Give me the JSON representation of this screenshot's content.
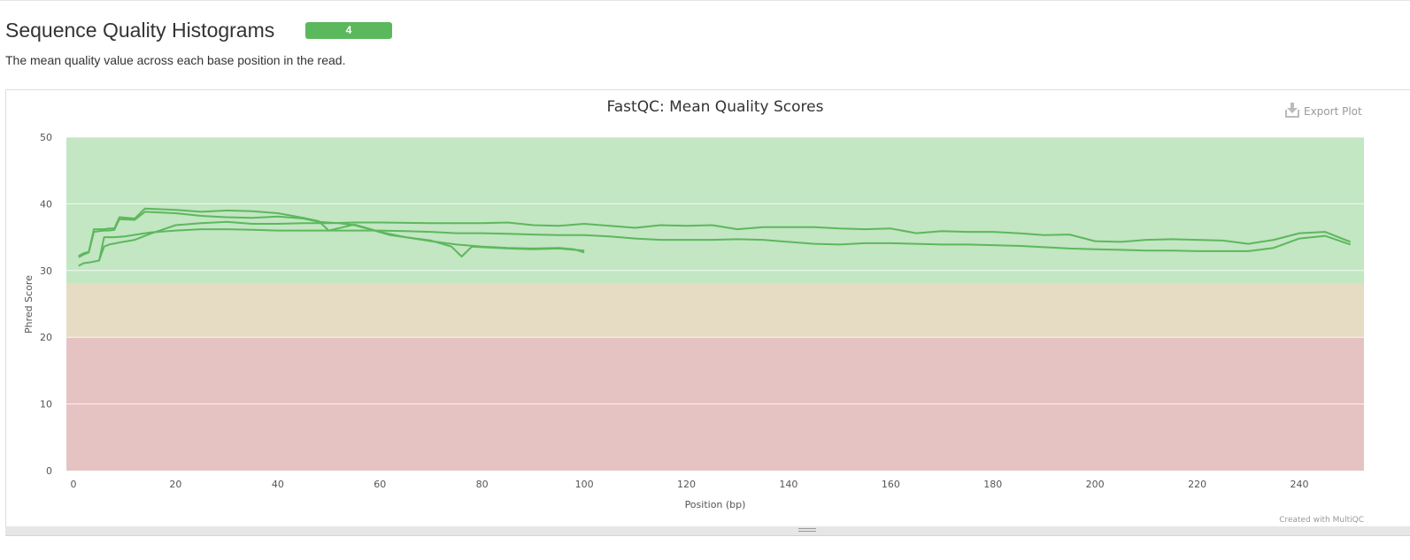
{
  "section": {
    "title": "Sequence Quality Histograms",
    "badge_count": "4",
    "description": "The mean quality value across each base position in the read."
  },
  "toolbar": {
    "export_label": "Export Plot",
    "export_icon": "download-icon"
  },
  "credit": "Created with MultiQC",
  "colors": {
    "line": "#5cb85c",
    "band_good": "#c3e6c3",
    "band_warn": "#e6dcc3",
    "band_fail": "#e6c3c3"
  },
  "chart_data": {
    "type": "line",
    "title": "FastQC: Mean Quality Scores",
    "xlabel": "Position (bp)",
    "ylabel": "Phred Score",
    "xlim": [
      0,
      252
    ],
    "ylim": [
      0,
      50
    ],
    "x_ticks": [
      0,
      20,
      40,
      60,
      80,
      100,
      120,
      140,
      160,
      180,
      200,
      220,
      240
    ],
    "y_ticks": [
      0,
      10,
      20,
      30,
      40,
      50
    ],
    "grid": true,
    "legend": "none",
    "bands": [
      {
        "from": 28,
        "to": 50,
        "level": "good"
      },
      {
        "from": 20,
        "to": 28,
        "level": "warn"
      },
      {
        "from": 0,
        "to": 20,
        "level": "fail"
      }
    ],
    "series": [
      {
        "x": [
          1,
          2,
          3,
          4,
          5,
          6,
          7,
          8,
          9,
          12,
          14,
          20,
          25,
          30,
          35,
          40,
          45,
          48,
          50,
          55,
          60,
          65,
          70,
          75,
          80,
          85,
          90,
          95,
          98,
          100
        ],
        "y": [
          32.2,
          32.6,
          32.8,
          36.2,
          36.2,
          36.2,
          36.3,
          36.3,
          38.0,
          37.8,
          39.3,
          39.1,
          38.8,
          39.0,
          38.9,
          38.6,
          37.9,
          37.4,
          36.0,
          36.9,
          35.8,
          35.0,
          34.4,
          33.9,
          33.6,
          33.4,
          33.3,
          33.4,
          33.2,
          32.7
        ]
      },
      {
        "x": [
          1,
          2,
          3,
          4,
          5,
          6,
          7,
          8,
          9,
          12,
          14,
          20,
          25,
          30,
          35,
          40,
          45,
          48,
          52,
          55,
          58,
          62,
          65,
          70,
          74,
          76,
          78,
          85,
          90,
          95,
          100
        ],
        "y": [
          32.0,
          32.4,
          32.7,
          35.8,
          35.9,
          36.0,
          36.0,
          36.1,
          37.7,
          37.6,
          38.8,
          38.6,
          38.2,
          38.0,
          37.9,
          38.1,
          37.8,
          37.3,
          37.1,
          36.8,
          36.2,
          35.3,
          35.0,
          34.5,
          33.6,
          32.1,
          33.6,
          33.3,
          33.2,
          33.3,
          33.0
        ]
      },
      {
        "x": [
          1,
          2,
          3,
          5,
          6,
          7,
          9,
          12,
          15,
          20,
          25,
          30,
          35,
          40,
          45,
          50,
          55,
          60,
          70,
          80,
          85,
          90,
          95,
          100,
          105,
          110,
          115,
          120,
          125,
          130,
          135,
          140,
          145,
          150,
          155,
          160,
          165,
          170,
          175,
          180,
          185,
          190,
          195,
          200,
          205,
          210,
          215,
          220,
          225,
          230,
          235,
          240,
          245,
          250
        ],
        "y": [
          30.7,
          31.1,
          31.2,
          31.5,
          33.6,
          33.9,
          34.2,
          34.6,
          35.5,
          36.8,
          37.1,
          37.3,
          37.0,
          37.0,
          37.1,
          37.1,
          37.2,
          37.2,
          37.1,
          37.1,
          37.2,
          36.8,
          36.7,
          37.0,
          36.7,
          36.4,
          36.8,
          36.7,
          36.8,
          36.2,
          36.5,
          36.5,
          36.5,
          36.3,
          36.2,
          36.3,
          35.6,
          35.9,
          35.8,
          35.8,
          35.6,
          35.3,
          35.4,
          34.4,
          34.3,
          34.6,
          34.7,
          34.6,
          34.5,
          34.0,
          34.6,
          35.6,
          35.8,
          34.3
        ]
      },
      {
        "x": [
          5,
          6,
          8,
          10,
          15,
          20,
          25,
          30,
          35,
          40,
          45,
          50,
          55,
          60,
          65,
          70,
          75,
          80,
          85,
          90,
          95,
          100,
          105,
          110,
          115,
          120,
          125,
          130,
          135,
          140,
          145,
          150,
          155,
          160,
          165,
          170,
          175,
          180,
          185,
          190,
          195,
          200,
          205,
          210,
          215,
          220,
          225,
          230,
          235,
          240,
          245,
          250
        ],
        "y": [
          31.4,
          35.0,
          35.0,
          35.1,
          35.7,
          36.0,
          36.2,
          36.2,
          36.1,
          36.0,
          36.0,
          36.0,
          36.0,
          36.0,
          35.9,
          35.8,
          35.6,
          35.6,
          35.5,
          35.4,
          35.3,
          35.3,
          35.1,
          34.8,
          34.6,
          34.6,
          34.6,
          34.7,
          34.6,
          34.3,
          34.0,
          33.9,
          34.1,
          34.1,
          34.0,
          33.9,
          33.9,
          33.8,
          33.7,
          33.5,
          33.3,
          33.2,
          33.1,
          33.0,
          33.0,
          32.9,
          32.9,
          32.9,
          33.4,
          34.8,
          35.2,
          33.9
        ]
      }
    ]
  }
}
